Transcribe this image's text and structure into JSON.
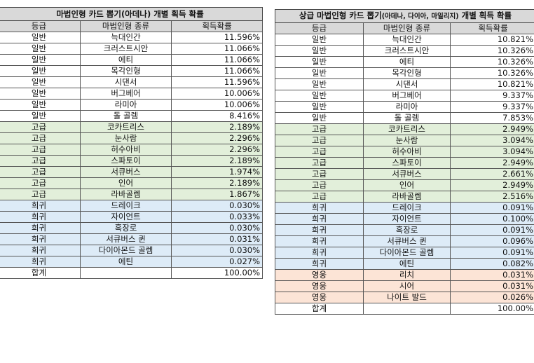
{
  "table1": {
    "title": "마법인형 카드 뽑기(아데나) 개별 획득 확률",
    "headers": [
      "등급",
      "마법인형 종류",
      "획득확률"
    ],
    "rows": [
      {
        "grade": "일반",
        "name": "늑대인간",
        "prob": "11.596%",
        "tier": "normal"
      },
      {
        "grade": "일반",
        "name": "크러스트시안",
        "prob": "11.066%",
        "tier": "normal"
      },
      {
        "grade": "일반",
        "name": "에티",
        "prob": "11.066%",
        "tier": "normal"
      },
      {
        "grade": "일반",
        "name": "목각인형",
        "prob": "11.066%",
        "tier": "normal"
      },
      {
        "grade": "일반",
        "name": "시댄서",
        "prob": "11.596%",
        "tier": "normal"
      },
      {
        "grade": "일반",
        "name": "버그베어",
        "prob": "10.006%",
        "tier": "normal"
      },
      {
        "grade": "일반",
        "name": "라미아",
        "prob": "10.006%",
        "tier": "normal"
      },
      {
        "grade": "일반",
        "name": "돌 골렘",
        "prob": "8.416%",
        "tier": "normal"
      },
      {
        "grade": "고급",
        "name": "코카트리스",
        "prob": "2.189%",
        "tier": "rare"
      },
      {
        "grade": "고급",
        "name": "눈사람",
        "prob": "2.296%",
        "tier": "rare"
      },
      {
        "grade": "고급",
        "name": "허수아비",
        "prob": "2.296%",
        "tier": "rare"
      },
      {
        "grade": "고급",
        "name": "스파토이",
        "prob": "2.189%",
        "tier": "rare"
      },
      {
        "grade": "고급",
        "name": "서큐버스",
        "prob": "1.974%",
        "tier": "rare"
      },
      {
        "grade": "고급",
        "name": "인어",
        "prob": "2.189%",
        "tier": "rare"
      },
      {
        "grade": "고급",
        "name": "라바골렘",
        "prob": "1.867%",
        "tier": "rare"
      },
      {
        "grade": "희귀",
        "name": "드레이크",
        "prob": "0.030%",
        "tier": "hero"
      },
      {
        "grade": "희귀",
        "name": "자이언트",
        "prob": "0.033%",
        "tier": "hero"
      },
      {
        "grade": "희귀",
        "name": "흑장로",
        "prob": "0.030%",
        "tier": "hero"
      },
      {
        "grade": "희귀",
        "name": "서큐버스 퀸",
        "prob": "0.031%",
        "tier": "hero"
      },
      {
        "grade": "희귀",
        "name": "다이아몬드 골렘",
        "prob": "0.030%",
        "tier": "hero"
      },
      {
        "grade": "희귀",
        "name": "에틴",
        "prob": "0.027%",
        "tier": "hero"
      }
    ],
    "total": {
      "grade": "합계",
      "name": "",
      "prob": "100.00%"
    }
  },
  "table2": {
    "title_main": "상급 마법인형 카드 뽑기",
    "title_small": "(아데나, 다이아, 마일리지)",
    "title_end": " 개별 획득 확률",
    "headers": [
      "등급",
      "마법인형 종류",
      "획득확률"
    ],
    "rows": [
      {
        "grade": "일반",
        "name": "늑대인간",
        "prob": "10.821%",
        "tier": "normal"
      },
      {
        "grade": "일반",
        "name": "크러스트시안",
        "prob": "10.326%",
        "tier": "normal"
      },
      {
        "grade": "일반",
        "name": "에티",
        "prob": "10.326%",
        "tier": "normal"
      },
      {
        "grade": "일반",
        "name": "목각인형",
        "prob": "10.326%",
        "tier": "normal"
      },
      {
        "grade": "일반",
        "name": "시댄서",
        "prob": "10.821%",
        "tier": "normal"
      },
      {
        "grade": "일반",
        "name": "버그베어",
        "prob": "9.337%",
        "tier": "normal"
      },
      {
        "grade": "일반",
        "name": "라미아",
        "prob": "9.337%",
        "tier": "normal"
      },
      {
        "grade": "일반",
        "name": "돌 골렘",
        "prob": "7.853%",
        "tier": "normal"
      },
      {
        "grade": "고급",
        "name": "코카트리스",
        "prob": "2.949%",
        "tier": "rare"
      },
      {
        "grade": "고급",
        "name": "눈사람",
        "prob": "3.094%",
        "tier": "rare"
      },
      {
        "grade": "고급",
        "name": "허수아비",
        "prob": "3.094%",
        "tier": "rare"
      },
      {
        "grade": "고급",
        "name": "스파토이",
        "prob": "2.949%",
        "tier": "rare"
      },
      {
        "grade": "고급",
        "name": "서큐버스",
        "prob": "2.661%",
        "tier": "rare"
      },
      {
        "grade": "고급",
        "name": "인어",
        "prob": "2.949%",
        "tier": "rare"
      },
      {
        "grade": "고급",
        "name": "라바골렘",
        "prob": "2.516%",
        "tier": "rare"
      },
      {
        "grade": "희귀",
        "name": "드레이크",
        "prob": "0.091%",
        "tier": "hero"
      },
      {
        "grade": "희귀",
        "name": "자이언트",
        "prob": "0.100%",
        "tier": "hero"
      },
      {
        "grade": "희귀",
        "name": "흑장로",
        "prob": "0.091%",
        "tier": "hero"
      },
      {
        "grade": "희귀",
        "name": "서큐버스 퀸",
        "prob": "0.096%",
        "tier": "hero"
      },
      {
        "grade": "희귀",
        "name": "다이아몬드 골렘",
        "prob": "0.091%",
        "tier": "hero"
      },
      {
        "grade": "희귀",
        "name": "에틴",
        "prob": "0.082%",
        "tier": "hero"
      },
      {
        "grade": "영웅",
        "name": "리치",
        "prob": "0.031%",
        "tier": "legend"
      },
      {
        "grade": "영웅",
        "name": "시어",
        "prob": "0.031%",
        "tier": "legend"
      },
      {
        "grade": "영웅",
        "name": "나이트 발드",
        "prob": "0.026%",
        "tier": "legend"
      }
    ],
    "total": {
      "grade": "합계",
      "name": "",
      "prob": "100.00%"
    }
  },
  "colors": {
    "header_bg": "#d9d9d9",
    "normal_bg": "#ffffff",
    "rare_bg": "#e2efda",
    "hero_bg": "#ddebf7",
    "legend_bg": "#fce4d6"
  }
}
